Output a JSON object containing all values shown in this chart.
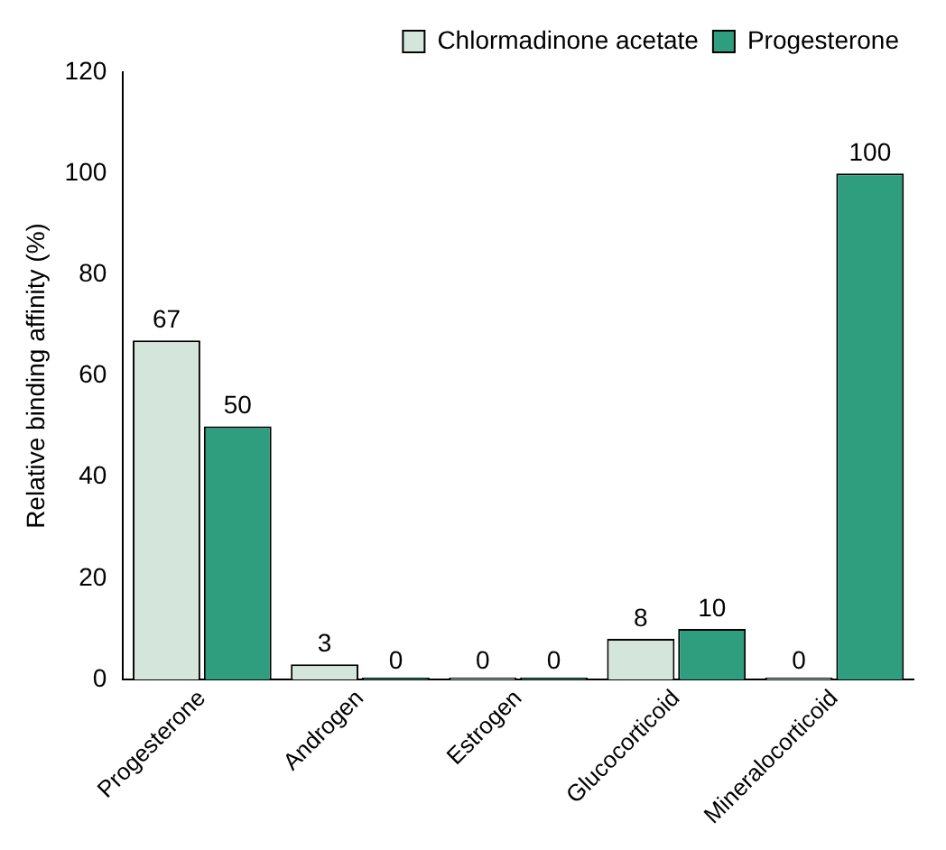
{
  "chart_data": {
    "type": "bar",
    "ylabel": "Relative binding affinity (%)",
    "categories": [
      "Progesterone",
      "Androgen",
      "Estrogen",
      "Glucocorticoid",
      "Mineralocorticoid"
    ],
    "series": [
      {
        "name": "Chlormadinone acetate",
        "color": "#d4e6dc",
        "values": [
          67,
          3,
          0,
          8,
          0
        ]
      },
      {
        "name": "Progesterone",
        "color": "#2e9e7e",
        "values": [
          50,
          0,
          0,
          10,
          100
        ]
      }
    ],
    "ylim": [
      0,
      120
    ],
    "yticks": [
      0,
      20,
      40,
      60,
      80,
      100,
      120
    ],
    "grid": false,
    "legend": "top right",
    "data_labels": true
  }
}
